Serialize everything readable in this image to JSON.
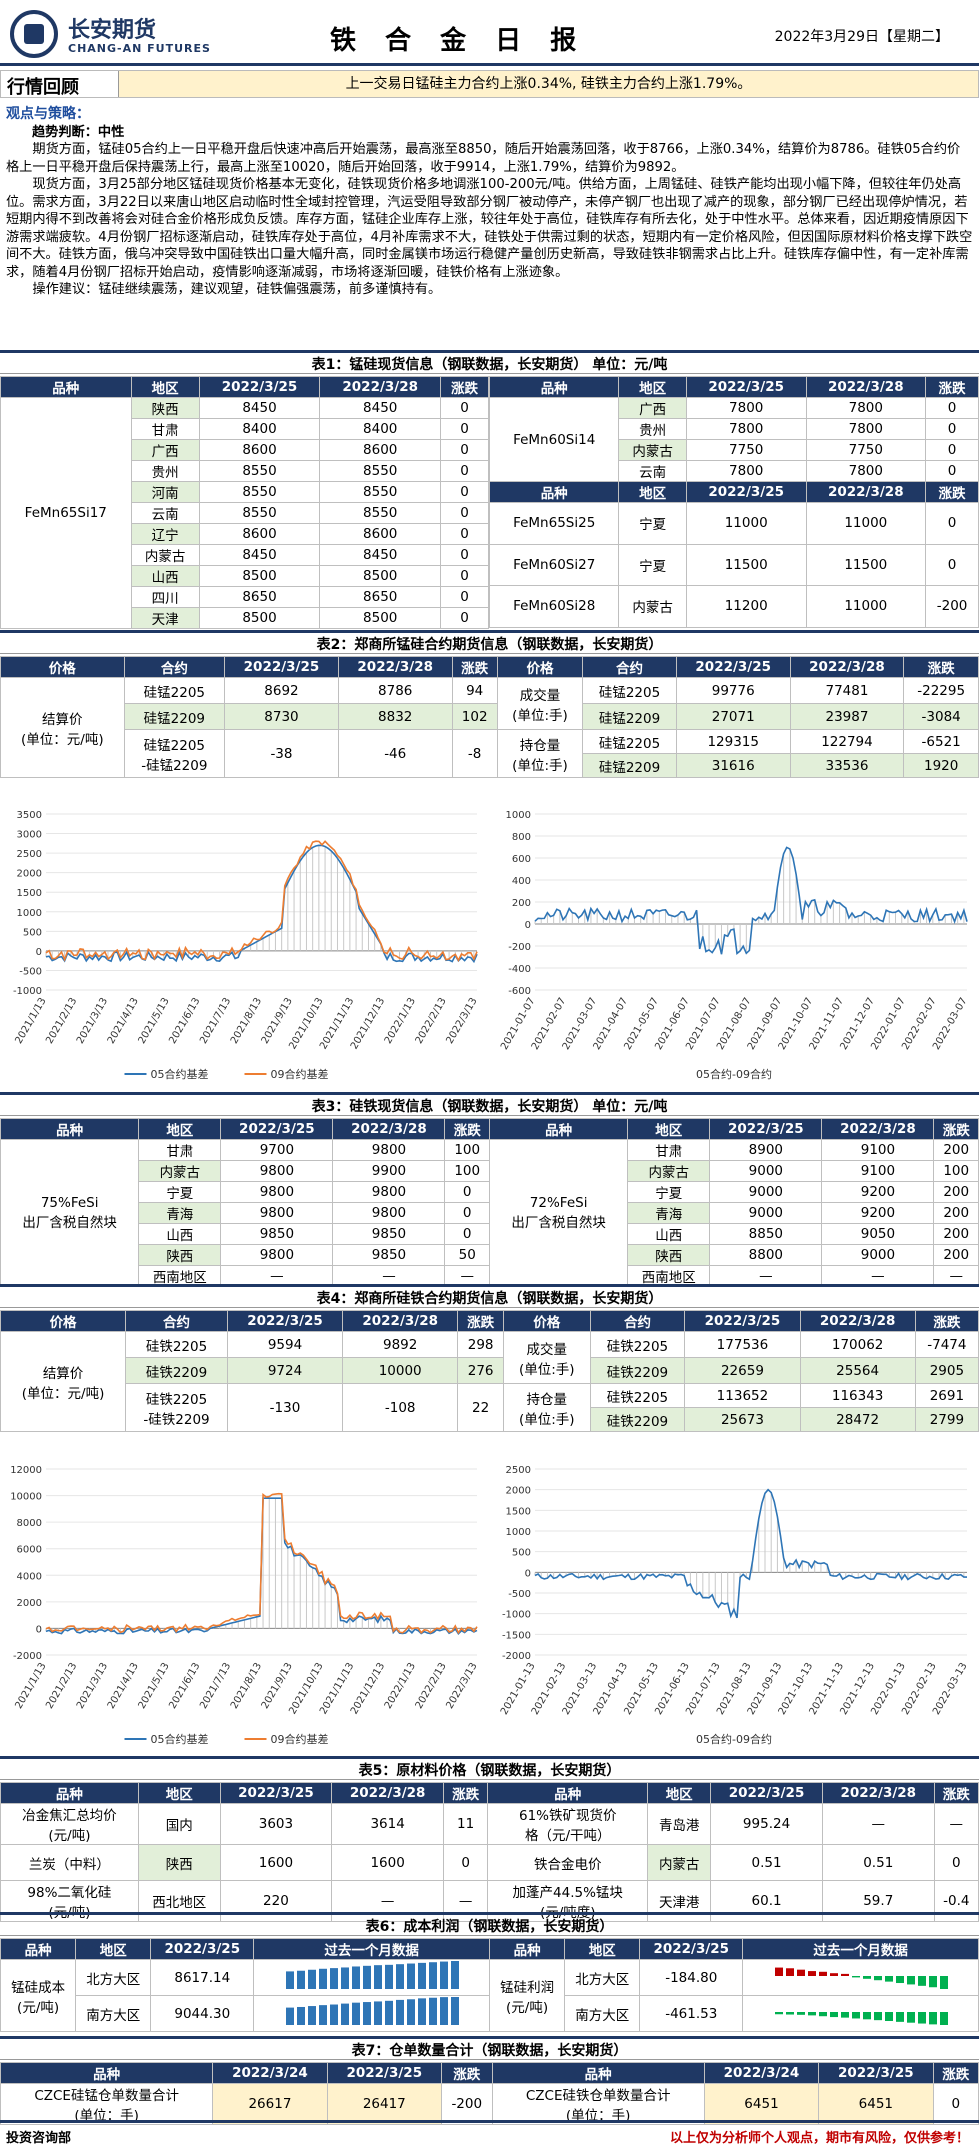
{
  "header": {
    "logo_cn": "长安期货",
    "logo_en": "CHANG-AN FUTURES",
    "title": "铁 合 金 日 报",
    "date": "2022年3月29日【星期二】"
  },
  "review": {
    "label": "行情回顾",
    "text": "上一交易日锰硅主力合约上涨0.34%, 硅铁主力合约上涨1.79%。"
  },
  "view": {
    "heading": "观点与策略：",
    "trend": "趋势判断：中性",
    "p1": "期货方面，锰硅05合约上一日平稳开盘后快速冲高后开始震荡，最高涨至8850，随后开始震荡回落，收于8766，上涨0.34%，结算价为8786。硅铁05合约价格上一日平稳开盘后保持震荡上行，最高上涨至10020，随后开始回落，收于9914，上涨1.79%，结算价为9892。",
    "p2": "现货方面，3月25部分地区锰硅现货价格基本无变化，硅铁现货价格多地调涨100-200元/吨。供给方面，上周锰硅、硅铁产能均出现小幅下降，但较往年仍处高位。需求方面，3月22日以来唐山地区启动临时性全域封控管理，汽运受阻导致部分钢厂被动停产，未停产钢厂也出现了减产的现象，部分钢厂已经出现停炉情况，若短期内得不到改善将会对硅合金价格形成负反馈。库存方面，锰硅企业库存上涨，较往年处于高位，硅铁库存有所去化，处于中性水平。总体来看，因近期疫情原因下游需求端疲软。4月份钢厂招标逐渐启动，硅铁库存处于高位，4月补库需求不大，硅铁处于供需过剩的状态，短期内有一定价格风险，但因国际原材料价格支撑下跌空间不大。硅铁方面，俄乌冲突导致中国硅铁出口量大幅升高，同时金属镁市场运行稳健产量创历史新高，导致硅铁非钢需求占比上升。硅铁库存偏中性，有一定补库需求，随着4月份钢厂招标开始启动，疫情影响逐渐减弱，市场将逐渐回暖，硅铁价格有上涨迹象。",
    "p3": "操作建议：锰硅继续震荡，建议观望，硅铁偏强震荡，前多谨慎持有。"
  },
  "t1": {
    "caption": "表1：锰硅现货信息（钢联数据，长安期货） 单位：元/吨",
    "cols": [
      "品种",
      "地区",
      "2022/3/25",
      "2022/3/28",
      "涨跌"
    ],
    "left_name": "FeMn65Si17",
    "left": [
      [
        "陕西",
        "8450",
        "8450",
        "0"
      ],
      [
        "甘肃",
        "8400",
        "8400",
        "0"
      ],
      [
        "广西",
        "8600",
        "8600",
        "0"
      ],
      [
        "贵州",
        "8550",
        "8550",
        "0"
      ],
      [
        "河南",
        "8550",
        "8550",
        "0"
      ],
      [
        "云南",
        "8550",
        "8550",
        "0"
      ],
      [
        "辽宁",
        "8600",
        "8600",
        "0"
      ],
      [
        "内蒙古",
        "8450",
        "8450",
        "0"
      ],
      [
        "山西",
        "8500",
        "8500",
        "0"
      ],
      [
        "四川",
        "8650",
        "8650",
        "0"
      ],
      [
        "天津",
        "8500",
        "8500",
        "0"
      ]
    ],
    "r1_name": "FeMn60Si14",
    "r1": [
      [
        "广西",
        "7800",
        "7800",
        "0"
      ],
      [
        "贵州",
        "7800",
        "7800",
        "0"
      ],
      [
        "内蒙古",
        "7750",
        "7750",
        "0"
      ],
      [
        "云南",
        "7800",
        "7800",
        "0"
      ]
    ],
    "r2": [
      [
        "FeMn65Si25",
        "宁夏",
        "11000",
        "11000",
        "0"
      ],
      [
        "FeMn60Si27",
        "宁夏",
        "11500",
        "11500",
        "0"
      ],
      [
        "FeMn60Si28",
        "内蒙古",
        "11200",
        "11000",
        "-200"
      ]
    ]
  },
  "t2": {
    "caption": "表2：郑商所锰硅合约期货信息（钢联数据，长安期货）",
    "cols": [
      "价格",
      "合约",
      "2022/3/25",
      "2022/3/28",
      "涨跌"
    ],
    "settle_label": "结算价\n(单位：元/吨)",
    "rows": [
      [
        "硅锰2205",
        "8692",
        "8786",
        "94"
      ],
      [
        "硅锰2209",
        "8730",
        "8832",
        "102"
      ],
      [
        "硅锰2205\n-硅锰2209",
        "-38",
        "-46",
        "-8"
      ]
    ],
    "vol_label": "成交量\n(单位:手)",
    "oi_label": "持仓量\n(单位:手)",
    "vol": [
      [
        "硅锰2205",
        "99776",
        "77481",
        "-22295"
      ],
      [
        "硅锰2209",
        "27071",
        "23987",
        "-3084"
      ]
    ],
    "oi": [
      [
        "硅锰2205",
        "129315",
        "122794",
        "-6521"
      ],
      [
        "硅锰2209",
        "31616",
        "33536",
        "1920"
      ]
    ]
  },
  "c1": {
    "legend": [
      "05合约基差",
      "09合约基差"
    ],
    "yticks": [
      "3500",
      "3000",
      "2500",
      "2000",
      "1500",
      "1000",
      "500",
      "0",
      "-500",
      "-1000"
    ],
    "xticks": [
      "2021/1/13",
      "2021/2/13",
      "2021/3/13",
      "2021/4/13",
      "2021/5/13",
      "2021/6/13",
      "2021/7/13",
      "2021/8/13",
      "2021/9/13",
      "2021/10/13",
      "2021/11/13",
      "2021/12/13",
      "2022/1/13",
      "2022/2/13",
      "2022/3/13"
    ]
  },
  "c2": {
    "legend": "05合约-09合约",
    "yticks": [
      "1000",
      "800",
      "600",
      "400",
      "200",
      "0",
      "-200",
      "-400",
      "-600"
    ],
    "xticks": [
      "2021-01-07",
      "2021-02-07",
      "2021-03-07",
      "2021-04-07",
      "2021-05-07",
      "2021-06-07",
      "2021-07-07",
      "2021-08-07",
      "2021-09-07",
      "2021-10-07",
      "2021-11-07",
      "2021-12-07",
      "2022-01-07",
      "2022-02-07",
      "2022-03-07"
    ]
  },
  "t3": {
    "caption": "表3：硅铁现货信息（钢联数据，长安期货） 单位：元/吨",
    "cols": [
      "品种",
      "地区",
      "2022/3/25",
      "2022/3/28",
      "涨跌"
    ],
    "left_name": "75%FeSi\n出厂含税自然块",
    "right_name": "72%FeSi\n出厂含税自然块",
    "left": [
      [
        "甘肃",
        "9700",
        "9800",
        "100"
      ],
      [
        "内蒙古",
        "9800",
        "9900",
        "100"
      ],
      [
        "宁夏",
        "9800",
        "9800",
        "0"
      ],
      [
        "青海",
        "9800",
        "9800",
        "0"
      ],
      [
        "山西",
        "9850",
        "9850",
        "0"
      ],
      [
        "陕西",
        "9800",
        "9850",
        "50"
      ],
      [
        "西南地区",
        "—",
        "—",
        "—"
      ]
    ],
    "right": [
      [
        "甘肃",
        "8900",
        "9100",
        "200"
      ],
      [
        "内蒙古",
        "9000",
        "9100",
        "100"
      ],
      [
        "宁夏",
        "9000",
        "9200",
        "200"
      ],
      [
        "青海",
        "9000",
        "9200",
        "200"
      ],
      [
        "山西",
        "8850",
        "9050",
        "200"
      ],
      [
        "陕西",
        "8800",
        "9000",
        "200"
      ],
      [
        "西南地区",
        "—",
        "—",
        "—"
      ]
    ]
  },
  "t4": {
    "caption": "表4：郑商所硅铁合约期货信息（钢联数据，长安期货）",
    "cols": [
      "价格",
      "合约",
      "2022/3/25",
      "2022/3/28",
      "涨跌"
    ],
    "settle_label": "结算价\n(单位：元/吨)",
    "rows": [
      [
        "硅铁2205",
        "9594",
        "9892",
        "298"
      ],
      [
        "硅铁2209",
        "9724",
        "10000",
        "276"
      ],
      [
        "硅铁2205\n-硅铁2209",
        "-130",
        "-108",
        "22"
      ]
    ],
    "vol_label": "成交量\n(单位:手)",
    "oi_label": "持仓量\n(单位:手)",
    "vol": [
      [
        "硅铁2205",
        "177536",
        "170062",
        "-7474"
      ],
      [
        "硅铁2209",
        "22659",
        "25564",
        "2905"
      ]
    ],
    "oi": [
      [
        "硅铁2205",
        "113652",
        "116343",
        "2691"
      ],
      [
        "硅铁2209",
        "25673",
        "28472",
        "2799"
      ]
    ]
  },
  "c3": {
    "legend": [
      "05合约基差",
      "09合约基差"
    ],
    "yticks": [
      "12000",
      "10000",
      "8000",
      "6000",
      "4000",
      "2000",
      "0",
      "-2000"
    ],
    "xticks": [
      "2021/1/13",
      "2021/2/13",
      "2021/3/13",
      "2021/4/13",
      "2021/5/13",
      "2021/6/13",
      "2021/7/13",
      "2021/8/13",
      "2021/9/13",
      "2021/10/13",
      "2021/11/13",
      "2021/12/13",
      "2022/1/13",
      "2022/2/13",
      "2022/3/13"
    ]
  },
  "c4": {
    "legend": "05合约-09合约",
    "yticks": [
      "2500",
      "2000",
      "1500",
      "1000",
      "500",
      "0",
      "-500",
      "-1000",
      "-1500",
      "-2000"
    ],
    "xticks": [
      "2021-01-13",
      "2021-02-13",
      "2021-03-13",
      "2021-04-13",
      "2021-05-13",
      "2021-06-13",
      "2021-07-13",
      "2021-08-13",
      "2021-09-13",
      "2021-10-13",
      "2021-11-13",
      "2021-12-13",
      "2022-01-13",
      "2022-02-13",
      "2022-03-13"
    ]
  },
  "t5": {
    "caption": "表5：原材料价格（钢联数据，长安期货）",
    "cols": [
      "品种",
      "地区",
      "2022/3/25",
      "2022/3/28",
      "涨跌"
    ],
    "left": [
      [
        "冶金焦汇总均价\n(元/吨)",
        "国内",
        "3603",
        "3614",
        "11"
      ],
      [
        "兰炭（中料）",
        "陕西",
        "1600",
        "1600",
        "0"
      ],
      [
        "98%二氧化硅\n(元/吨)",
        "西北地区",
        "220",
        "—",
        "—"
      ]
    ],
    "right": [
      [
        "61%铁矿现货价\n格（元/干吨）",
        "青岛港",
        "995.24",
        "—",
        "—"
      ],
      [
        "铁合金电价",
        "内蒙古",
        "0.51",
        "0.51",
        "0"
      ],
      [
        "加蓬产44.5%锰块\n(元/吨度)",
        "天津港",
        "60.1",
        "59.7",
        "-0.4"
      ]
    ]
  },
  "t6": {
    "caption": "表6：成本利润（钢联数据，长安期货）",
    "cols": [
      "品种",
      "地区",
      "2022/3/25",
      "过去一个月数据"
    ],
    "cost_label": "锰硅成本\n(元/吨)",
    "profit_label": "锰硅利润\n(元/吨)",
    "cost": [
      [
        "北方大区",
        "8617.14"
      ],
      [
        "南方大区",
        "9044.30"
      ]
    ],
    "profit": [
      [
        "北方大区",
        "-184.80"
      ],
      [
        "南方大区",
        "-461.53"
      ]
    ],
    "spark_north_cost": [
      8300,
      8320,
      8350,
      8380,
      8400,
      8420,
      8450,
      8470,
      8490,
      8500,
      8520,
      8540,
      8560,
      8580,
      8600,
      8617
    ],
    "spark_south_cost": [
      8700,
      8720,
      8750,
      8780,
      8800,
      8830,
      8860,
      8880,
      8900,
      8920,
      8950,
      8970,
      9000,
      9020,
      9040,
      9044
    ],
    "spark_north_profit": [
      120,
      110,
      90,
      70,
      60,
      40,
      30,
      -20,
      -40,
      -60,
      -80,
      -100,
      -120,
      -140,
      -160,
      -185
    ],
    "spark_south_profit": [
      -80,
      -90,
      -100,
      -120,
      -150,
      -180,
      -200,
      -230,
      -260,
      -290,
      -320,
      -350,
      -380,
      -410,
      -440,
      -462
    ]
  },
  "t7": {
    "caption": "表7：仓单数量合计（钢联数据，长安期货）",
    "cols": [
      "品种",
      "2022/3/24",
      "2022/3/25",
      "涨跌"
    ],
    "rows": [
      [
        "CZCE硅锰仓单数量合计\n(单位：手)",
        "26617",
        "26417",
        "-200"
      ],
      [
        "CZCE硅铁仓单数量合计\n(单位：手)",
        "6451",
        "6451",
        "0"
      ]
    ]
  },
  "footer": {
    "left": "投资咨询部",
    "right": "以上仅为分析师个人观点，期市有风险，仅供参考！"
  },
  "colors": {
    "navy": "#1f3864",
    "blue": "#2e75b6",
    "orange": "#ed7d31",
    "red": "#c00000",
    "green": "#00b050"
  }
}
